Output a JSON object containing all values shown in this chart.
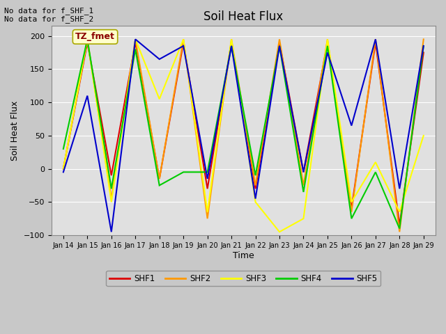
{
  "title": "Soil Heat Flux",
  "xlabel": "Time",
  "ylabel": "Soil Heat Flux",
  "ylim": [
    -100,
    215
  ],
  "yticks": [
    -100,
    -50,
    0,
    50,
    100,
    150,
    200
  ],
  "annotation_text": "No data for f_SHF_1\nNo data for f_SHF_2",
  "box_label": "TZ_fmet",
  "x_labels": [
    "Jan 14",
    "Jan 15",
    "Jan 16",
    "Jan 17",
    "Jan 18",
    "Jan 19",
    "Jan 20",
    "Jan 21",
    "Jan 22",
    "Jan 23",
    "Jan 24",
    "Jan 25",
    "Jan 26",
    "Jan 27",
    "Jan 28",
    "Jan 29"
  ],
  "series": {
    "SHF1": {
      "color": "#dd0000",
      "x": [
        0,
        1,
        2,
        3,
        4,
        5,
        6,
        7,
        8,
        9,
        10,
        11,
        12,
        13,
        14,
        15
      ],
      "y": [
        0,
        190,
        -10,
        190,
        -15,
        190,
        -30,
        190,
        -30,
        190,
        -5,
        190,
        -60,
        190,
        -85,
        175
      ]
    },
    "SHF2": {
      "color": "#ff9900",
      "x": [
        0,
        1,
        2,
        3,
        4,
        5,
        6,
        7,
        8,
        9,
        10,
        11,
        12,
        13,
        14,
        15
      ],
      "y": [
        0,
        195,
        -45,
        195,
        -15,
        195,
        -75,
        195,
        -25,
        195,
        -25,
        195,
        -65,
        195,
        -95,
        195
      ]
    },
    "SHF3": {
      "color": "#ffff00",
      "x": [
        0,
        1,
        2,
        3,
        4,
        5,
        6,
        7,
        8,
        9,
        10,
        11,
        12,
        13,
        14,
        15
      ],
      "y": [
        0,
        195,
        -50,
        195,
        105,
        195,
        -65,
        195,
        -50,
        -95,
        -75,
        195,
        -50,
        10,
        -65,
        50
      ]
    },
    "SHF4": {
      "color": "#00cc00",
      "x": [
        0,
        1,
        2,
        3,
        4,
        5,
        6,
        7,
        8,
        9,
        10,
        11,
        12,
        13,
        14,
        15
      ],
      "y": [
        30,
        195,
        -30,
        180,
        -25,
        -5,
        -5,
        185,
        -10,
        185,
        -35,
        185,
        -75,
        -5,
        -90,
        185
      ]
    },
    "SHF5": {
      "color": "#0000cc",
      "x": [
        0,
        1,
        2,
        3,
        4,
        5,
        6,
        7,
        8,
        9,
        10,
        11,
        12,
        13,
        14,
        15
      ],
      "y": [
        -5,
        110,
        -95,
        195,
        165,
        185,
        -15,
        185,
        -45,
        185,
        -5,
        175,
        65,
        195,
        -30,
        185
      ]
    }
  },
  "fig_facecolor": "#c8c8c8",
  "ax_facecolor": "#e0e0e0",
  "grid_color": "#ffffff",
  "legend_names": [
    "SHF1",
    "SHF2",
    "SHF3",
    "SHF4",
    "SHF5"
  ],
  "legend_colors": [
    "#dd0000",
    "#ff9900",
    "#ffff00",
    "#00cc00",
    "#0000cc"
  ]
}
